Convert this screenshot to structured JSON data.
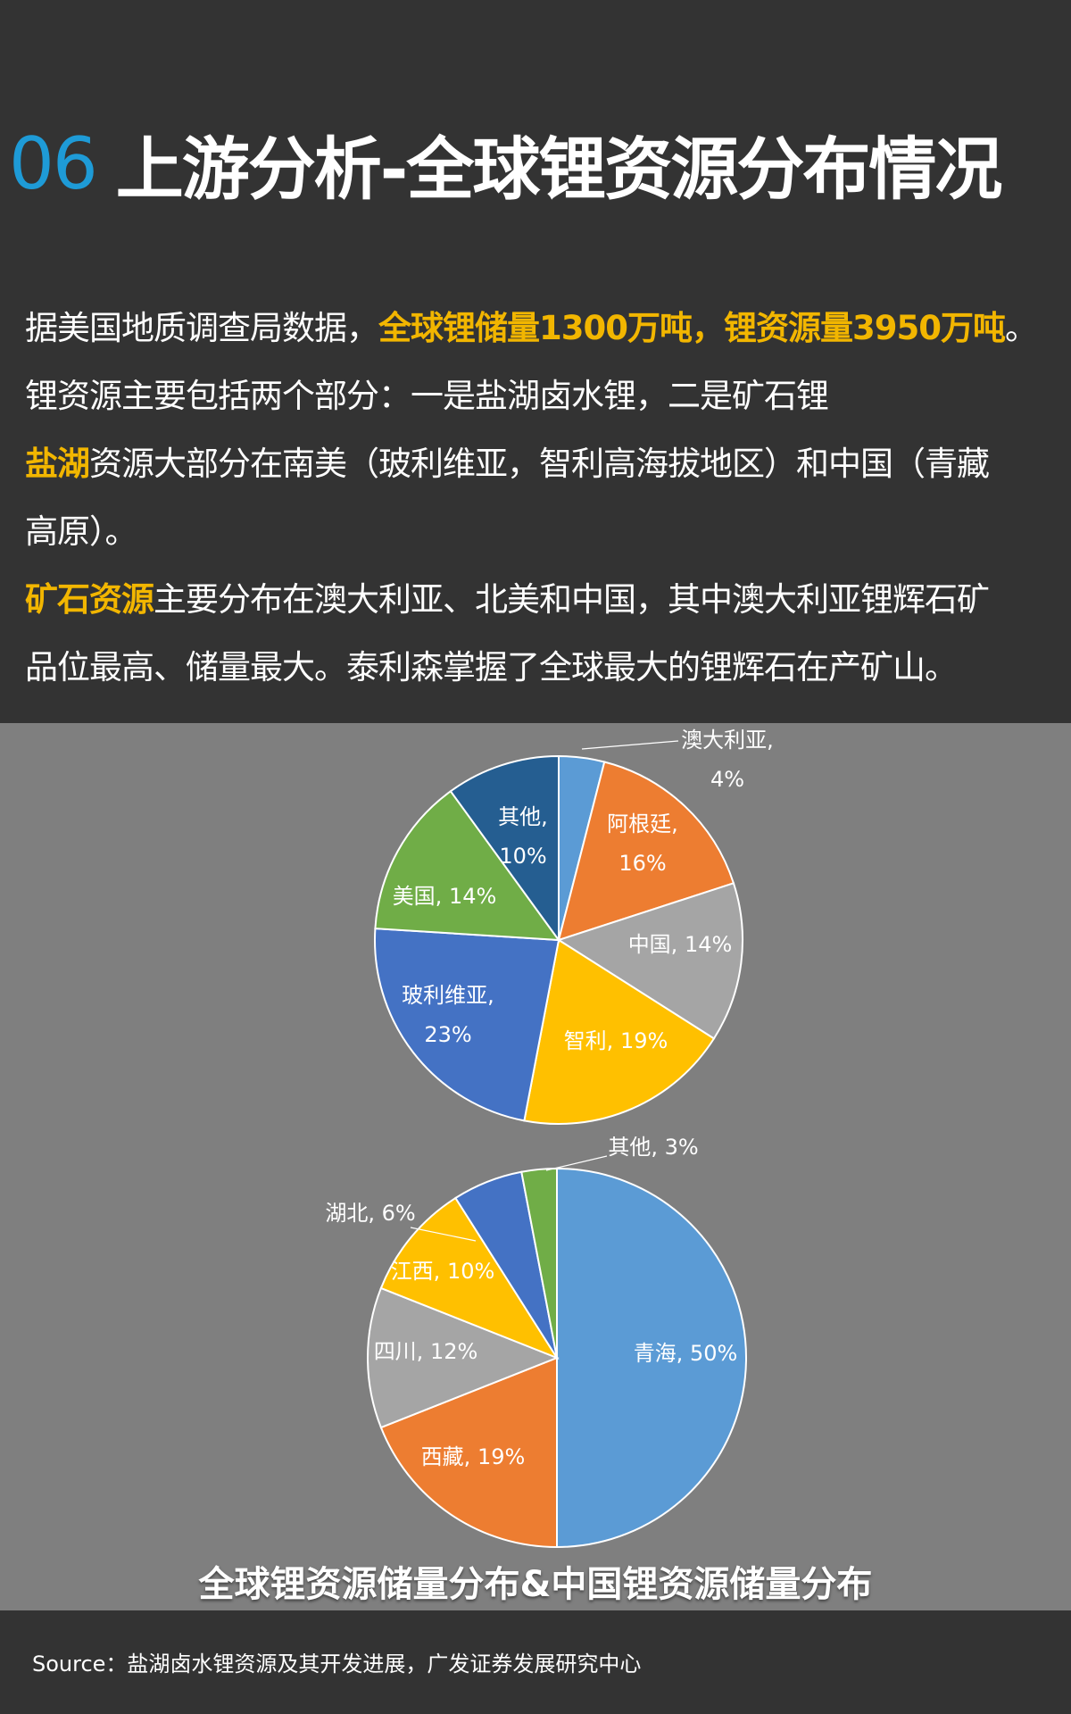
{
  "header": {
    "number": "06",
    "title": "上游分析-全球锂资源分布情况"
  },
  "body": {
    "p1_a": "据美国地质调查局数据，",
    "p1_b": "全球锂储量1300万吨，锂资源量3950万吨",
    "p1_c": "。",
    "p2": "锂资源主要包括两个部分：一是盐湖卤水锂，二是矿石锂",
    "p3_hl": "盐湖",
    "p3_a": "资源大部分在南美（玻利维亚，智利高海拔地区）和中国（青藏",
    "p3_b": "高原）。",
    "p4_hl": "矿石资源",
    "p4_a": "主要分布在澳大利亚、北美和中国，其中澳大利亚锂辉石矿",
    "p4_b": "品位最高、储量最大。泰利森掌握了全球最大的锂辉石在产矿山。"
  },
  "chart_title": "全球锂资源储量分布&中国锂资源储量分布",
  "source": "Source：盐湖卤水锂资源及其开发进展，广发证券发展研究中心",
  "chart_data": [
    {
      "type": "pie",
      "categories": [
        "澳大利亚",
        "阿根廷",
        "中国",
        "智利",
        "玻利维亚",
        "美国",
        "其他"
      ],
      "values": [
        4,
        16,
        14,
        19,
        23,
        14,
        10
      ],
      "colors": [
        "#5b9bd5",
        "#ed7d31",
        "#a5a5a5",
        "#ffc000",
        "#4472c4",
        "#70ad47",
        "#255e91"
      ],
      "labels": [
        [
          "澳大利亚,",
          "4%"
        ],
        [
          "阿根廷,",
          "16%"
        ],
        [
          "中国, 14%"
        ],
        [
          "智利, 19%"
        ],
        [
          "玻利维亚,",
          "23%"
        ],
        [
          "美国, 14%"
        ],
        [
          "其他,",
          "10%"
        ]
      ]
    },
    {
      "type": "pie",
      "categories": [
        "青海",
        "西藏",
        "四川",
        "江西",
        "湖北",
        "其他"
      ],
      "values": [
        50,
        19,
        12,
        10,
        6,
        3
      ],
      "colors": [
        "#5b9bd5",
        "#ed7d31",
        "#a5a5a5",
        "#ffc000",
        "#4472c4",
        "#70ad47"
      ],
      "labels": [
        [
          "青海, 50%"
        ],
        [
          "西藏, 19%"
        ],
        [
          "四川, 12%"
        ],
        [
          "江西, 10%"
        ],
        [
          "湖北, 6%"
        ],
        [
          "其他, 3%"
        ]
      ]
    }
  ]
}
